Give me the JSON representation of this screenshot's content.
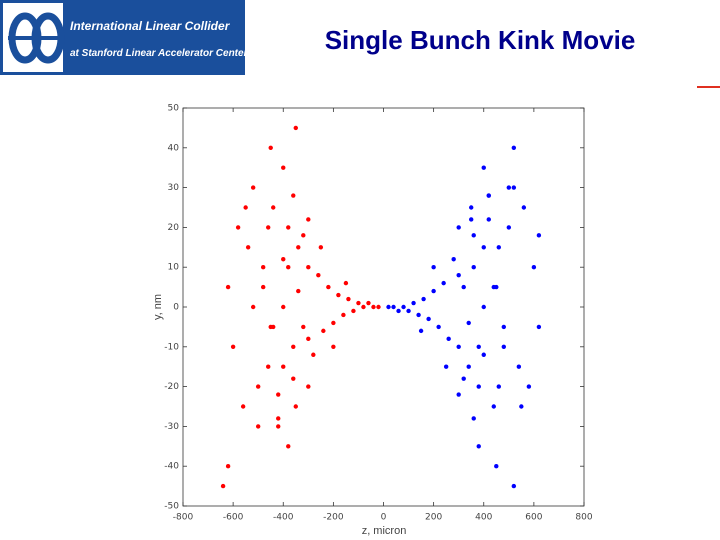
{
  "logo": {
    "line1": "International Linear Collider",
    "line2": "at Stanford Linear Accelerator Center"
  },
  "chart_data": {
    "type": "scatter",
    "title": "Single Bunch Kink Movie",
    "xlabel": "z, micron",
    "ylabel": "y, nm",
    "xlim": [
      -800,
      800
    ],
    "xticks": [
      -800,
      -600,
      -400,
      -200,
      0,
      200,
      400,
      600,
      800
    ],
    "ylim": [
      -50,
      50
    ],
    "yticks": [
      50,
      40,
      30,
      20,
      10,
      0,
      -10,
      -20,
      -30,
      -40,
      -50
    ],
    "grid": false,
    "series": [
      {
        "color": "#ff0000",
        "x": [
          -620,
          -600,
          -580,
          -560,
          -540,
          -520,
          -500,
          -480,
          -460,
          -440,
          -420,
          -400,
          -380,
          -360,
          -340,
          -320,
          -300,
          -280,
          -260,
          -240,
          -220,
          -200,
          -180,
          -160,
          -140,
          -120,
          -100,
          -80,
          -60,
          -40,
          -20,
          -400,
          -380,
          -360,
          -420,
          -450,
          -350,
          -300,
          -500,
          -550,
          -620,
          -640,
          -350,
          -380,
          -450,
          -300,
          -400,
          -250,
          -200,
          -150,
          -520,
          -480,
          -440,
          -400,
          -360,
          -320,
          -420,
          -460,
          -340,
          -300
        ],
        "values": [
          5,
          -10,
          20,
          -25,
          15,
          30,
          -20,
          10,
          -15,
          25,
          -30,
          0,
          20,
          -10,
          15,
          -5,
          10,
          -12,
          8,
          -6,
          5,
          -4,
          3,
          -2,
          2,
          -1,
          1,
          0,
          1,
          0,
          0,
          35,
          -35,
          28,
          -28,
          40,
          -25,
          22,
          -30,
          25,
          -40,
          -45,
          45,
          10,
          -5,
          -20,
          -15,
          15,
          -10,
          6,
          0,
          5,
          -5,
          12,
          -18,
          18,
          -22,
          20,
          4,
          -8
        ]
      },
      {
        "color": "#0000ff",
        "x": [
          620,
          600,
          580,
          560,
          540,
          520,
          500,
          480,
          460,
          440,
          420,
          400,
          380,
          360,
          340,
          320,
          300,
          280,
          260,
          240,
          220,
          200,
          180,
          160,
          140,
          120,
          100,
          80,
          60,
          40,
          20,
          400,
          380,
          360,
          420,
          450,
          350,
          300,
          500,
          550,
          620,
          520,
          350,
          380,
          450,
          300,
          400,
          250,
          200,
          150,
          520,
          480,
          440,
          400,
          360,
          320,
          420,
          460,
          340,
          300
        ],
        "values": [
          -5,
          10,
          -20,
          25,
          -15,
          30,
          20,
          -10,
          15,
          -25,
          28,
          0,
          -20,
          10,
          -15,
          5,
          -10,
          12,
          -8,
          6,
          -5,
          4,
          -3,
          2,
          -2,
          1,
          -1,
          0,
          -1,
          0,
          0,
          35,
          -35,
          -28,
          28,
          -40,
          25,
          -22,
          30,
          -25,
          18,
          -45,
          22,
          -10,
          5,
          20,
          15,
          -15,
          10,
          -6,
          40,
          -5,
          5,
          -12,
          18,
          -18,
          22,
          -20,
          -4,
          8
        ]
      }
    ]
  }
}
